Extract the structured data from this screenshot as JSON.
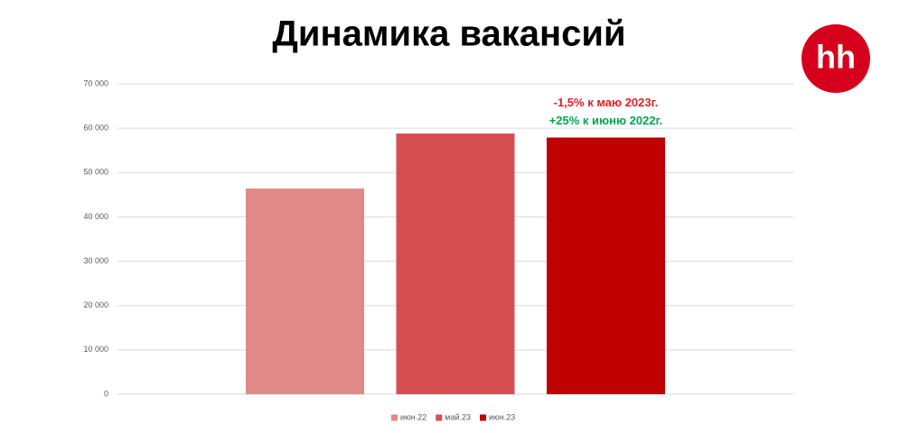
{
  "chart_data": {
    "type": "bar",
    "title": "Динамика вакансий",
    "logo": "hh",
    "categories": [
      null
    ],
    "series": [
      {
        "name": "июн.22",
        "color": "#e08a87",
        "values": [
          46400
        ]
      },
      {
        "name": "май.23",
        "color": "#d64e51",
        "values": [
          58800
        ]
      },
      {
        "name": "июн.23",
        "color": "#c00000",
        "values": [
          57900
        ]
      }
    ],
    "annotations": [
      {
        "text": "-1,5% к маю 2023г.",
        "color": "#e31e24"
      },
      {
        "text": "+25% к июню 2022г.",
        "color": "#00a650"
      }
    ],
    "ylim": [
      0,
      70000
    ],
    "yticks": [
      0,
      {
        "value": 10000,
        "label": "10 000"
      },
      {
        "value": 20000,
        "label": "20 000"
      },
      {
        "value": 30000,
        "label": "30 000"
      },
      {
        "value": 40000,
        "label": "40 000"
      },
      {
        "value": 50000,
        "label": "50 000"
      },
      {
        "value": 60000,
        "label": "60 000"
      },
      {
        "value": 70000,
        "label": "70 000"
      }
    ],
    "grid": true,
    "legend": "bottom"
  }
}
